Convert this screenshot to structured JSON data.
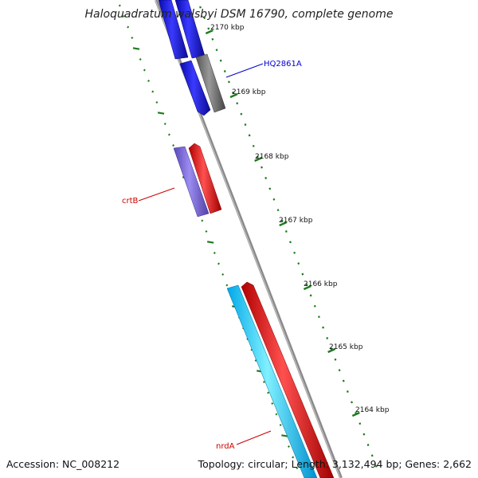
{
  "title": "Haloquadratum walsbyi DSM 16790, complete genome",
  "footer": {
    "accession": "Accession: NC_008212",
    "summary": "Topology: circular; Length: 3,132,494 bp; Genes: 2,662"
  },
  "scale_ticks": [
    "2170 kbp",
    "2169 kbp",
    "2168 kbp",
    "2167 kbp",
    "2166 kbp",
    "2165 kbp",
    "2164 kbp"
  ],
  "gene_labels": [
    {
      "text": "HQ2861A",
      "color": "#0000cc"
    },
    {
      "text": "crtB",
      "color": "#cc0000"
    },
    {
      "text": "nrdA",
      "color": "#cc0000"
    }
  ],
  "colors": {
    "backbone": "#8a8a8a",
    "tick": "#1f7a1f",
    "gene_blue": "#1414e6",
    "gene_gray": "#6e6e6e",
    "gene_purple": "#7a66d6",
    "gene_red": "#f01010",
    "gene_cyan": "#1ec8ff"
  }
}
